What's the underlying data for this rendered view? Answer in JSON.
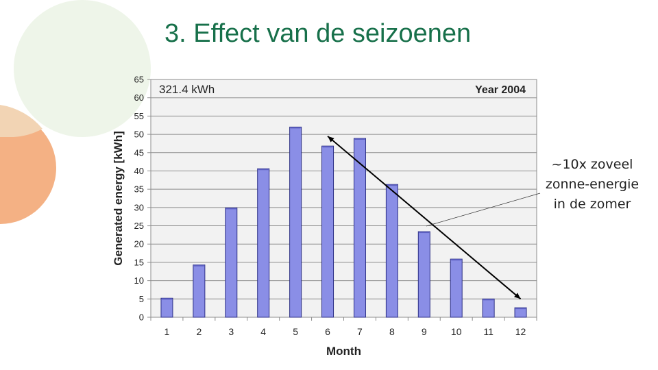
{
  "slide": {
    "title": "3. Effect van de seizoenen",
    "annotation_lines": [
      "~10x zoveel",
      "zonne-energie",
      "in de zomer"
    ]
  },
  "colors": {
    "title": "#17704a",
    "plot_background": "#f2f2f2",
    "bar_fill": "#8a8ee6",
    "bar_edge": "#2c2f85",
    "deco_green": "#eef5e9",
    "deco_orange": "#f4b184",
    "deco_peach": "#f2d4b4"
  },
  "chart_data": {
    "type": "bar",
    "title_left": "321.4 kWh",
    "title_right": "Year 2004",
    "xlabel": "Month",
    "ylabel": "Generated energy [kWh]",
    "categories": [
      "1",
      "2",
      "3",
      "4",
      "5",
      "6",
      "7",
      "8",
      "9",
      "10",
      "11",
      "12"
    ],
    "values": [
      5.2,
      14.3,
      29.9,
      40.6,
      52.0,
      46.8,
      48.9,
      36.3,
      23.4,
      15.9,
      5.0,
      2.6
    ],
    "ylim": [
      0,
      65
    ],
    "yticks": [
      0,
      5,
      10,
      15,
      20,
      25,
      30,
      35,
      40,
      45,
      50,
      55,
      60,
      65
    ],
    "grid": true,
    "legend": "none",
    "arrow": {
      "from_month": "6",
      "from_value": 49.5,
      "to_month": "12",
      "to_value": 5.0
    }
  }
}
